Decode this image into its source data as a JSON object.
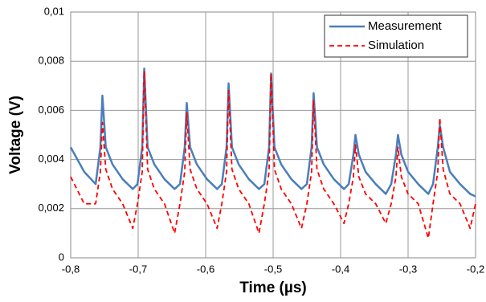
{
  "chart_data": {
    "type": "line",
    "x_label": "Time (µs)",
    "y_label": "Voltage (V)",
    "x": [
      -0.8,
      -0.78,
      -0.763,
      -0.756,
      -0.753,
      -0.748,
      -0.738,
      -0.723,
      -0.708,
      -0.701,
      -0.694,
      -0.691,
      -0.686,
      -0.676,
      -0.661,
      -0.646,
      -0.638,
      -0.631,
      -0.628,
      -0.623,
      -0.613,
      -0.598,
      -0.583,
      -0.576,
      -0.569,
      -0.566,
      -0.561,
      -0.551,
      -0.536,
      -0.521,
      -0.513,
      -0.506,
      -0.503,
      -0.498,
      -0.488,
      -0.473,
      -0.458,
      -0.45,
      -0.443,
      -0.44,
      -0.435,
      -0.425,
      -0.41,
      -0.395,
      -0.388,
      -0.381,
      -0.378,
      -0.373,
      -0.363,
      -0.348,
      -0.333,
      -0.325,
      -0.318,
      -0.315,
      -0.31,
      -0.3,
      -0.285,
      -0.27,
      -0.263,
      -0.256,
      -0.253,
      -0.248,
      -0.238,
      -0.223,
      -0.208,
      -0.2
    ],
    "series": [
      {
        "name": "Measurement",
        "color": "#4a7ebb",
        "dash": "none",
        "values": [
          0.0045,
          0.0035,
          0.003,
          0.0045,
          0.0066,
          0.0045,
          0.0038,
          0.0032,
          0.0028,
          0.003,
          0.0045,
          0.0077,
          0.0045,
          0.0038,
          0.0032,
          0.0028,
          0.003,
          0.0045,
          0.0063,
          0.0045,
          0.0038,
          0.0032,
          0.0028,
          0.003,
          0.0045,
          0.0071,
          0.0045,
          0.0038,
          0.0032,
          0.0028,
          0.003,
          0.0045,
          0.0075,
          0.0045,
          0.0038,
          0.0032,
          0.0028,
          0.003,
          0.0045,
          0.0067,
          0.0045,
          0.0038,
          0.0032,
          0.0028,
          0.003,
          0.0042,
          0.005,
          0.0042,
          0.0035,
          0.003,
          0.0026,
          0.003,
          0.0042,
          0.005,
          0.0042,
          0.0035,
          0.003,
          0.0026,
          0.003,
          0.0045,
          0.0054,
          0.0045,
          0.0035,
          0.003,
          0.0026,
          0.0025
        ]
      },
      {
        "name": "Simulation",
        "color": "#ff0000",
        "dash": "6,4",
        "values": [
          0.0033,
          0.0022,
          0.0022,
          0.0035,
          0.0055,
          0.0036,
          0.0028,
          0.0022,
          0.0012,
          0.0022,
          0.0035,
          0.0076,
          0.0036,
          0.0028,
          0.0022,
          0.001,
          0.0022,
          0.0035,
          0.0059,
          0.0036,
          0.0028,
          0.0022,
          0.0012,
          0.0022,
          0.0035,
          0.0068,
          0.0036,
          0.0028,
          0.0022,
          0.001,
          0.0022,
          0.0035,
          0.0075,
          0.0036,
          0.0028,
          0.0022,
          0.0012,
          0.0022,
          0.0035,
          0.0064,
          0.0036,
          0.0028,
          0.0022,
          0.0014,
          0.0022,
          0.0033,
          0.0046,
          0.0033,
          0.0026,
          0.0022,
          0.0014,
          0.0022,
          0.0033,
          0.0045,
          0.0033,
          0.0026,
          0.0022,
          0.0008,
          0.0022,
          0.0035,
          0.0057,
          0.0036,
          0.0026,
          0.0022,
          0.0012,
          0.0022
        ]
      }
    ],
    "xlim": [
      -0.8,
      -0.2
    ],
    "xticks": [
      {
        "value": -0.8,
        "label": "-0,8"
      },
      {
        "value": -0.7,
        "label": "-0,7"
      },
      {
        "value": -0.6,
        "label": "-0,6"
      },
      {
        "value": -0.5,
        "label": "-0,5"
      },
      {
        "value": -0.4,
        "label": "-0,4"
      },
      {
        "value": -0.3,
        "label": "-0,3"
      },
      {
        "value": -0.2,
        "label": "-0,2"
      }
    ],
    "ylim": [
      0,
      0.01
    ],
    "yticks": [
      0,
      {
        "value": 0.002,
        "label": "0,002"
      },
      {
        "value": 0.004,
        "label": "0,004"
      },
      {
        "value": 0.006,
        "label": "0,006"
      },
      {
        "value": 0.008,
        "label": "0,008"
      },
      {
        "value": 0.01,
        "label": "0,01"
      }
    ],
    "grid": true,
    "legend": "top-right"
  }
}
